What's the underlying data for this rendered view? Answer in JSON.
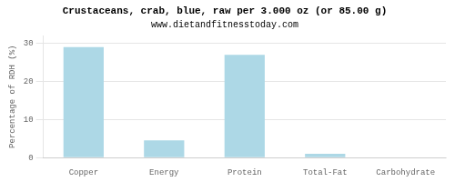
{
  "chart_data": {
    "type": "bar",
    "title": "Crustaceans, crab, blue, raw per 3.000 oz (or 85.00 g)",
    "subtitle": "www.dietandfitnesstoday.com",
    "categories": [
      "Copper",
      "Energy",
      "Protein",
      "Total-Fat",
      "Carbohydrate"
    ],
    "values": [
      29.0,
      4.5,
      27.0,
      1.0,
      0.0
    ],
    "color": "#add8e6",
    "ylabel": "Percentage of RDH (%)",
    "ylim": [
      0,
      32
    ],
    "yticks": [
      0,
      10,
      20,
      30
    ],
    "grid": "y"
  }
}
